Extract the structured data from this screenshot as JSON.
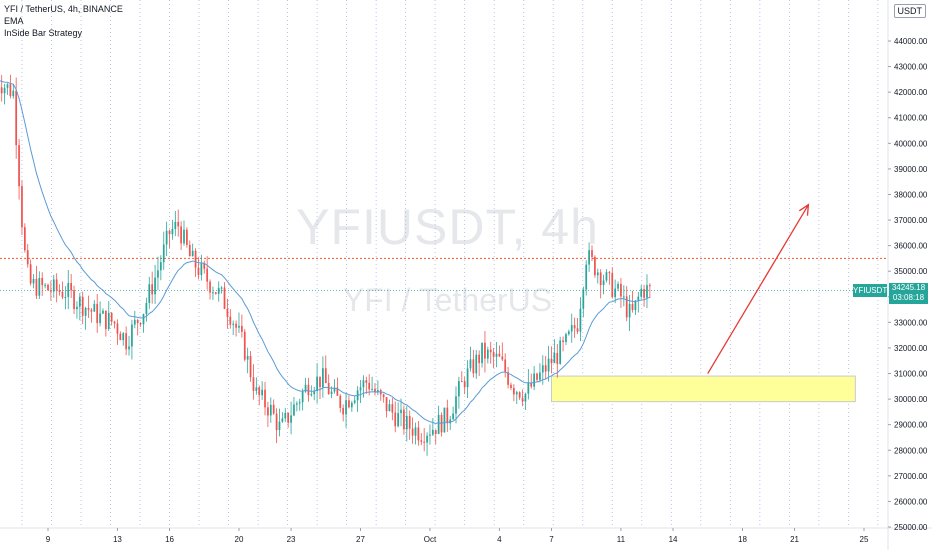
{
  "legend": {
    "symbol_line": "YFI / TetherUS, 4h, BINANCE",
    "indicator_1": "EMA",
    "indicator_2": "InSide Bar Strategy"
  },
  "watermark": {
    "symbol": "YFIUSDT, 4h",
    "description": "YFI / TetherUS"
  },
  "currency_button": "USDT",
  "last_price": {
    "symbol": "YFIUSDT",
    "price": "34245.18",
    "countdown": "03:08:18"
  },
  "colors": {
    "up": "#26a69a",
    "down": "#ef5350",
    "ema": "#5b9bd5",
    "resistance": "#ff5722",
    "price_line": "#26a69a",
    "zone_fill": "#ffff99",
    "zone_border": "#c9c9c9",
    "arrow": "#e53935",
    "grid": "#a8b8e8"
  },
  "chart_data": {
    "type": "candlestick",
    "symbol": "YFIUSDT",
    "exchange": "BINANCE",
    "interval": "4h",
    "ylim": [
      25000,
      44800
    ],
    "y_ticks": [
      "44000.00",
      "43000.00",
      "42000.00",
      "41000.00",
      "40000.00",
      "39000.00",
      "38000.00",
      "37000.00",
      "36000.00",
      "35000.00",
      "34000.00",
      "33000.00",
      "32000.00",
      "31000.00",
      "30000.00",
      "29000.00",
      "28000.00",
      "27000.00",
      "26000.00",
      "25000.00"
    ],
    "x_ticks": [
      {
        "label": "9",
        "day": 9
      },
      {
        "label": "13",
        "day": 13
      },
      {
        "label": "16",
        "day": 16
      },
      {
        "label": "20",
        "day": 20
      },
      {
        "label": "23",
        "day": 23
      },
      {
        "label": "27",
        "day": 27
      },
      {
        "label": "Oct",
        "day": 31
      },
      {
        "label": "4",
        "day": 35
      },
      {
        "label": "7",
        "day": 38
      },
      {
        "label": "11",
        "day": 42
      },
      {
        "label": "14",
        "day": 45
      },
      {
        "label": "18",
        "day": 49
      },
      {
        "label": "21",
        "day": 52
      },
      {
        "label": "25",
        "day": 56
      }
    ],
    "x_range_days": [
      6,
      57.6
    ],
    "series_anchors": [
      [
        6.0,
        42500
      ],
      [
        7.0,
        42000
      ],
      [
        7.6,
        36000
      ],
      [
        7.9,
        34500
      ],
      [
        9.0,
        34300
      ],
      [
        10.0,
        34200
      ],
      [
        11.0,
        33700
      ],
      [
        12.0,
        33200
      ],
      [
        12.8,
        33000
      ],
      [
        13.5,
        32300
      ],
      [
        14.5,
        33500
      ],
      [
        15.3,
        35000
      ],
      [
        16.0,
        36500
      ],
      [
        16.5,
        36800
      ],
      [
        17.2,
        35500
      ],
      [
        18.0,
        34800
      ],
      [
        19.0,
        34000
      ],
      [
        19.6,
        33200
      ],
      [
        20.3,
        32000
      ],
      [
        21.0,
        30200
      ],
      [
        21.8,
        29600
      ],
      [
        22.4,
        28800
      ],
      [
        23.0,
        29500
      ],
      [
        24.0,
        30600
      ],
      [
        24.8,
        30800
      ],
      [
        25.4,
        30100
      ],
      [
        26.0,
        29800
      ],
      [
        26.8,
        30400
      ],
      [
        27.4,
        30700
      ],
      [
        28.0,
        30100
      ],
      [
        28.8,
        29500
      ],
      [
        29.6,
        29000
      ],
      [
        30.5,
        28700
      ],
      [
        31.2,
        28900
      ],
      [
        32.0,
        29300
      ],
      [
        33.0,
        30800
      ],
      [
        34.0,
        31800
      ],
      [
        35.0,
        31500
      ],
      [
        35.8,
        30500
      ],
      [
        36.5,
        30200
      ],
      [
        37.2,
        30800
      ],
      [
        38.0,
        31500
      ],
      [
        38.7,
        32000
      ],
      [
        39.5,
        33000
      ],
      [
        40.0,
        35600
      ],
      [
        40.6,
        35100
      ],
      [
        41.2,
        34600
      ],
      [
        42.0,
        34000
      ],
      [
        42.6,
        33200
      ],
      [
        43.2,
        34300
      ],
      [
        43.7,
        34245
      ]
    ],
    "last_price": 34245.18,
    "resistance_level": 35500,
    "demand_zone": {
      "day_start": 38.0,
      "day_end": 55.5,
      "price_low": 29900,
      "price_high": 30900
    },
    "projection_arrow": {
      "from": [
        47.0,
        31000
      ],
      "to": [
        52.8,
        37600
      ]
    },
    "grid_vertical": "dotted",
    "grid_horizontal": false
  }
}
